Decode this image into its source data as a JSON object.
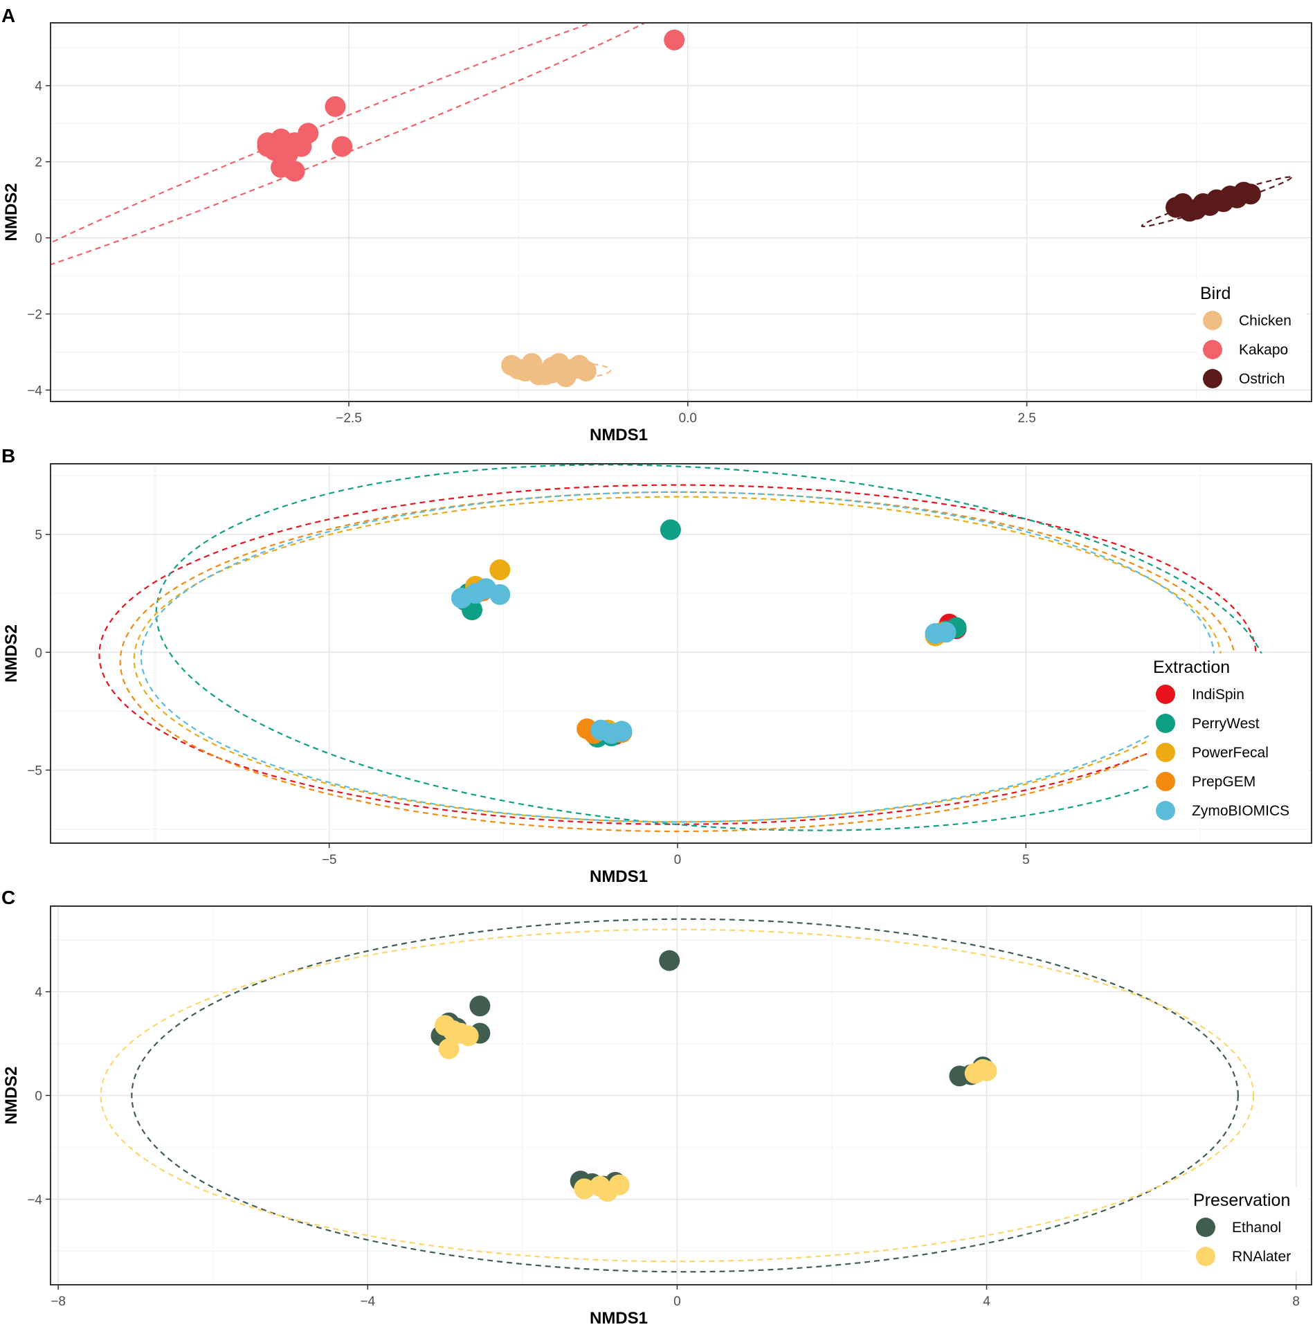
{
  "chart_data": [
    {
      "type": "scatter",
      "panel_label": "A",
      "xlabel": "NMDS1",
      "ylabel": "NMDS2",
      "xlim": [
        -4.7,
        4.6
      ],
      "ylim": [
        -4.3,
        5.65
      ],
      "xticks": [
        -2.5,
        0.0,
        2.5
      ],
      "xtick_labels": [
        "−2.5",
        "0.0",
        "2.5"
      ],
      "yticks": [
        -4,
        -2,
        0,
        2,
        4
      ],
      "ytick_labels": [
        "−4",
        "−2",
        "0",
        "2",
        "4"
      ],
      "grid": true,
      "legend": {
        "title": "Bird",
        "placement": "bottom-right",
        "entries": [
          {
            "label": "Chicken",
            "color": "#F0BE82"
          },
          {
            "label": "Kakapo",
            "color": "#F2626B"
          },
          {
            "label": "Ostrich",
            "color": "#5A1A1A"
          }
        ]
      },
      "series": [
        {
          "name": "Chicken",
          "color": "#F0BE82",
          "x": [
            -1.3,
            -1.2,
            -1.15,
            -1.05,
            -1.0,
            -0.95,
            -0.9,
            -0.85,
            -0.8,
            -0.75,
            -0.9,
            -1.1,
            -1.25,
            -1.0,
            -0.8
          ],
          "y": [
            -3.35,
            -3.5,
            -3.3,
            -3.6,
            -3.4,
            -3.3,
            -3.55,
            -3.45,
            -3.35,
            -3.5,
            -3.65,
            -3.6,
            -3.45,
            -3.55,
            -3.4
          ],
          "ellipse": {
            "cx": -0.95,
            "cy": -3.48,
            "rx": 0.38,
            "ry": 0.22,
            "angle": 0
          }
        },
        {
          "name": "Kakapo",
          "color": "#F2626B",
          "x": [
            -3.1,
            -3.0,
            -2.9,
            -2.8,
            -3.05,
            -2.95,
            -2.85,
            -3.0,
            -2.9,
            -2.55,
            -2.6,
            -0.1,
            -3.1
          ],
          "y": [
            2.4,
            2.6,
            2.5,
            2.75,
            2.3,
            2.2,
            2.4,
            1.85,
            1.75,
            2.4,
            3.45,
            5.2,
            2.5
          ],
          "ellipse": {
            "cx": -2.6,
            "cy": 2.6,
            "rx": 2.8,
            "ry": 0.45,
            "angle": 22
          }
        },
        {
          "name": "Ostrich",
          "color": "#5A1A1A",
          "x": [
            3.6,
            3.7,
            3.8,
            3.9,
            4.0,
            4.1,
            3.85,
            3.95,
            4.05,
            3.75,
            3.65,
            4.15
          ],
          "y": [
            0.8,
            0.7,
            0.9,
            1.0,
            1.1,
            1.2,
            0.85,
            0.95,
            1.05,
            0.75,
            0.9,
            1.15
          ],
          "ellipse": {
            "cx": 3.9,
            "cy": 0.95,
            "rx": 0.58,
            "ry": 0.13,
            "angle": 18
          }
        }
      ]
    },
    {
      "type": "scatter",
      "panel_label": "B",
      "xlabel": "NMDS1",
      "ylabel": "NMDS2",
      "xlim": [
        -9.0,
        9.1
      ],
      "ylim": [
        -8.1,
        8.0
      ],
      "xticks": [
        -5,
        0,
        5
      ],
      "xtick_labels": [
        "−5",
        "0",
        "5"
      ],
      "yticks": [
        -5,
        0,
        5
      ],
      "ytick_labels": [
        "−5",
        "0",
        "5"
      ],
      "grid": true,
      "legend": {
        "title": "Extraction",
        "placement": "right",
        "entries": [
          {
            "label": "IndiSpin",
            "color": "#E8131B"
          },
          {
            "label": "PerryWest",
            "color": "#0E9F85"
          },
          {
            "label": "PowerFecal",
            "color": "#ECAB13"
          },
          {
            "label": "PrepGEM",
            "color": "#F28A11"
          },
          {
            "label": "ZymoBIOMICS",
            "color": "#5BBCD9"
          }
        ]
      },
      "series": [
        {
          "name": "IndiSpin",
          "color": "#E8131B",
          "x": [
            3.9,
            4.0,
            -1.2,
            -0.9,
            -2.9
          ],
          "y": [
            1.2,
            1.0,
            -3.4,
            -3.5,
            2.5
          ],
          "ellipse": {
            "cx": 0,
            "cy": -0.1,
            "rx": 8.3,
            "ry": 7.2,
            "angle": 0
          }
        },
        {
          "name": "PerryWest",
          "color": "#0E9F85",
          "x": [
            -3.0,
            -3.05,
            -2.95,
            -0.1,
            4.0,
            3.85,
            -1.15,
            -0.95
          ],
          "y": [
            2.5,
            2.2,
            1.8,
            5.2,
            1.05,
            0.9,
            -3.6,
            -3.55
          ],
          "ellipse": {
            "cx": 0.5,
            "cy": 0.2,
            "rx": 8.0,
            "ry": 7.6,
            "angle": -4
          }
        },
        {
          "name": "PowerFecal",
          "color": "#ECAB13",
          "x": [
            -2.55,
            -2.9,
            3.7,
            -0.8,
            -1.0
          ],
          "y": [
            3.5,
            2.8,
            0.7,
            -3.4,
            -3.3
          ],
          "ellipse": {
            "cx": 0,
            "cy": -0.3,
            "rx": 7.8,
            "ry": 6.9,
            "angle": 0
          }
        },
        {
          "name": "PrepGEM",
          "color": "#F28A11",
          "x": [
            -1.3,
            -1.2,
            -0.8,
            3.8,
            -2.8
          ],
          "y": [
            -3.25,
            -3.45,
            -3.4,
            0.85,
            2.6
          ],
          "ellipse": {
            "cx": 0,
            "cy": -0.4,
            "rx": 8.0,
            "ry": 7.2,
            "angle": 0
          }
        },
        {
          "name": "ZymoBIOMICS",
          "color": "#5BBCD9",
          "x": [
            -3.1,
            -2.9,
            -2.75,
            -2.55,
            3.7,
            3.85,
            -1.1,
            -0.95,
            -0.8
          ],
          "y": [
            2.3,
            2.5,
            2.7,
            2.45,
            0.8,
            0.85,
            -3.3,
            -3.45,
            -3.35
          ],
          "ellipse": {
            "cx": 0,
            "cy": -0.2,
            "rx": 7.7,
            "ry": 7.0,
            "angle": 0
          }
        }
      ]
    },
    {
      "type": "scatter",
      "panel_label": "C",
      "xlabel": "NMDS1",
      "ylabel": "NMDS2",
      "xlim": [
        -8.1,
        8.2
      ],
      "ylim": [
        -7.3,
        7.3
      ],
      "xticks": [
        -8,
        -4,
        0,
        4,
        8
      ],
      "xtick_labels": [
        "−8",
        "−4",
        "0",
        "4",
        "8"
      ],
      "yticks": [
        -4,
        0,
        4
      ],
      "ytick_labels": [
        "−4",
        "0",
        "4"
      ],
      "grid": true,
      "legend": {
        "title": "Preservation",
        "placement": "bottom-right",
        "entries": [
          {
            "label": "Ethanol",
            "color": "#3F5E4F"
          },
          {
            "label": "RNAlater",
            "color": "#FCD66A"
          }
        ]
      },
      "series": [
        {
          "name": "Ethanol",
          "color": "#3F5E4F",
          "x": [
            -3.0,
            -2.95,
            -2.85,
            -3.05,
            -2.55,
            -2.55,
            -0.1,
            3.65,
            3.8,
            3.95,
            -1.25,
            -1.1,
            -0.95,
            -0.8
          ],
          "y": [
            2.5,
            2.8,
            2.6,
            2.3,
            3.45,
            2.4,
            5.2,
            0.75,
            0.8,
            1.1,
            -3.3,
            -3.4,
            -3.5,
            -3.35
          ],
          "ellipse": {
            "cx": 0.1,
            "cy": 0.0,
            "rx": 7.15,
            "ry": 6.8,
            "angle": 0
          }
        },
        {
          "name": "RNAlater",
          "color": "#FCD66A",
          "x": [
            -3.0,
            -2.9,
            -2.8,
            -2.7,
            -2.95,
            3.85,
            3.95,
            4.0,
            -1.2,
            -1.0,
            -0.9,
            -0.75
          ],
          "y": [
            2.7,
            2.5,
            2.4,
            2.3,
            1.8,
            0.85,
            1.0,
            0.95,
            -3.6,
            -3.5,
            -3.7,
            -3.45
          ],
          "ellipse": {
            "cx": 0.0,
            "cy": 0.0,
            "rx": 7.45,
            "ry": 6.4,
            "angle": 0
          }
        }
      ]
    }
  ]
}
